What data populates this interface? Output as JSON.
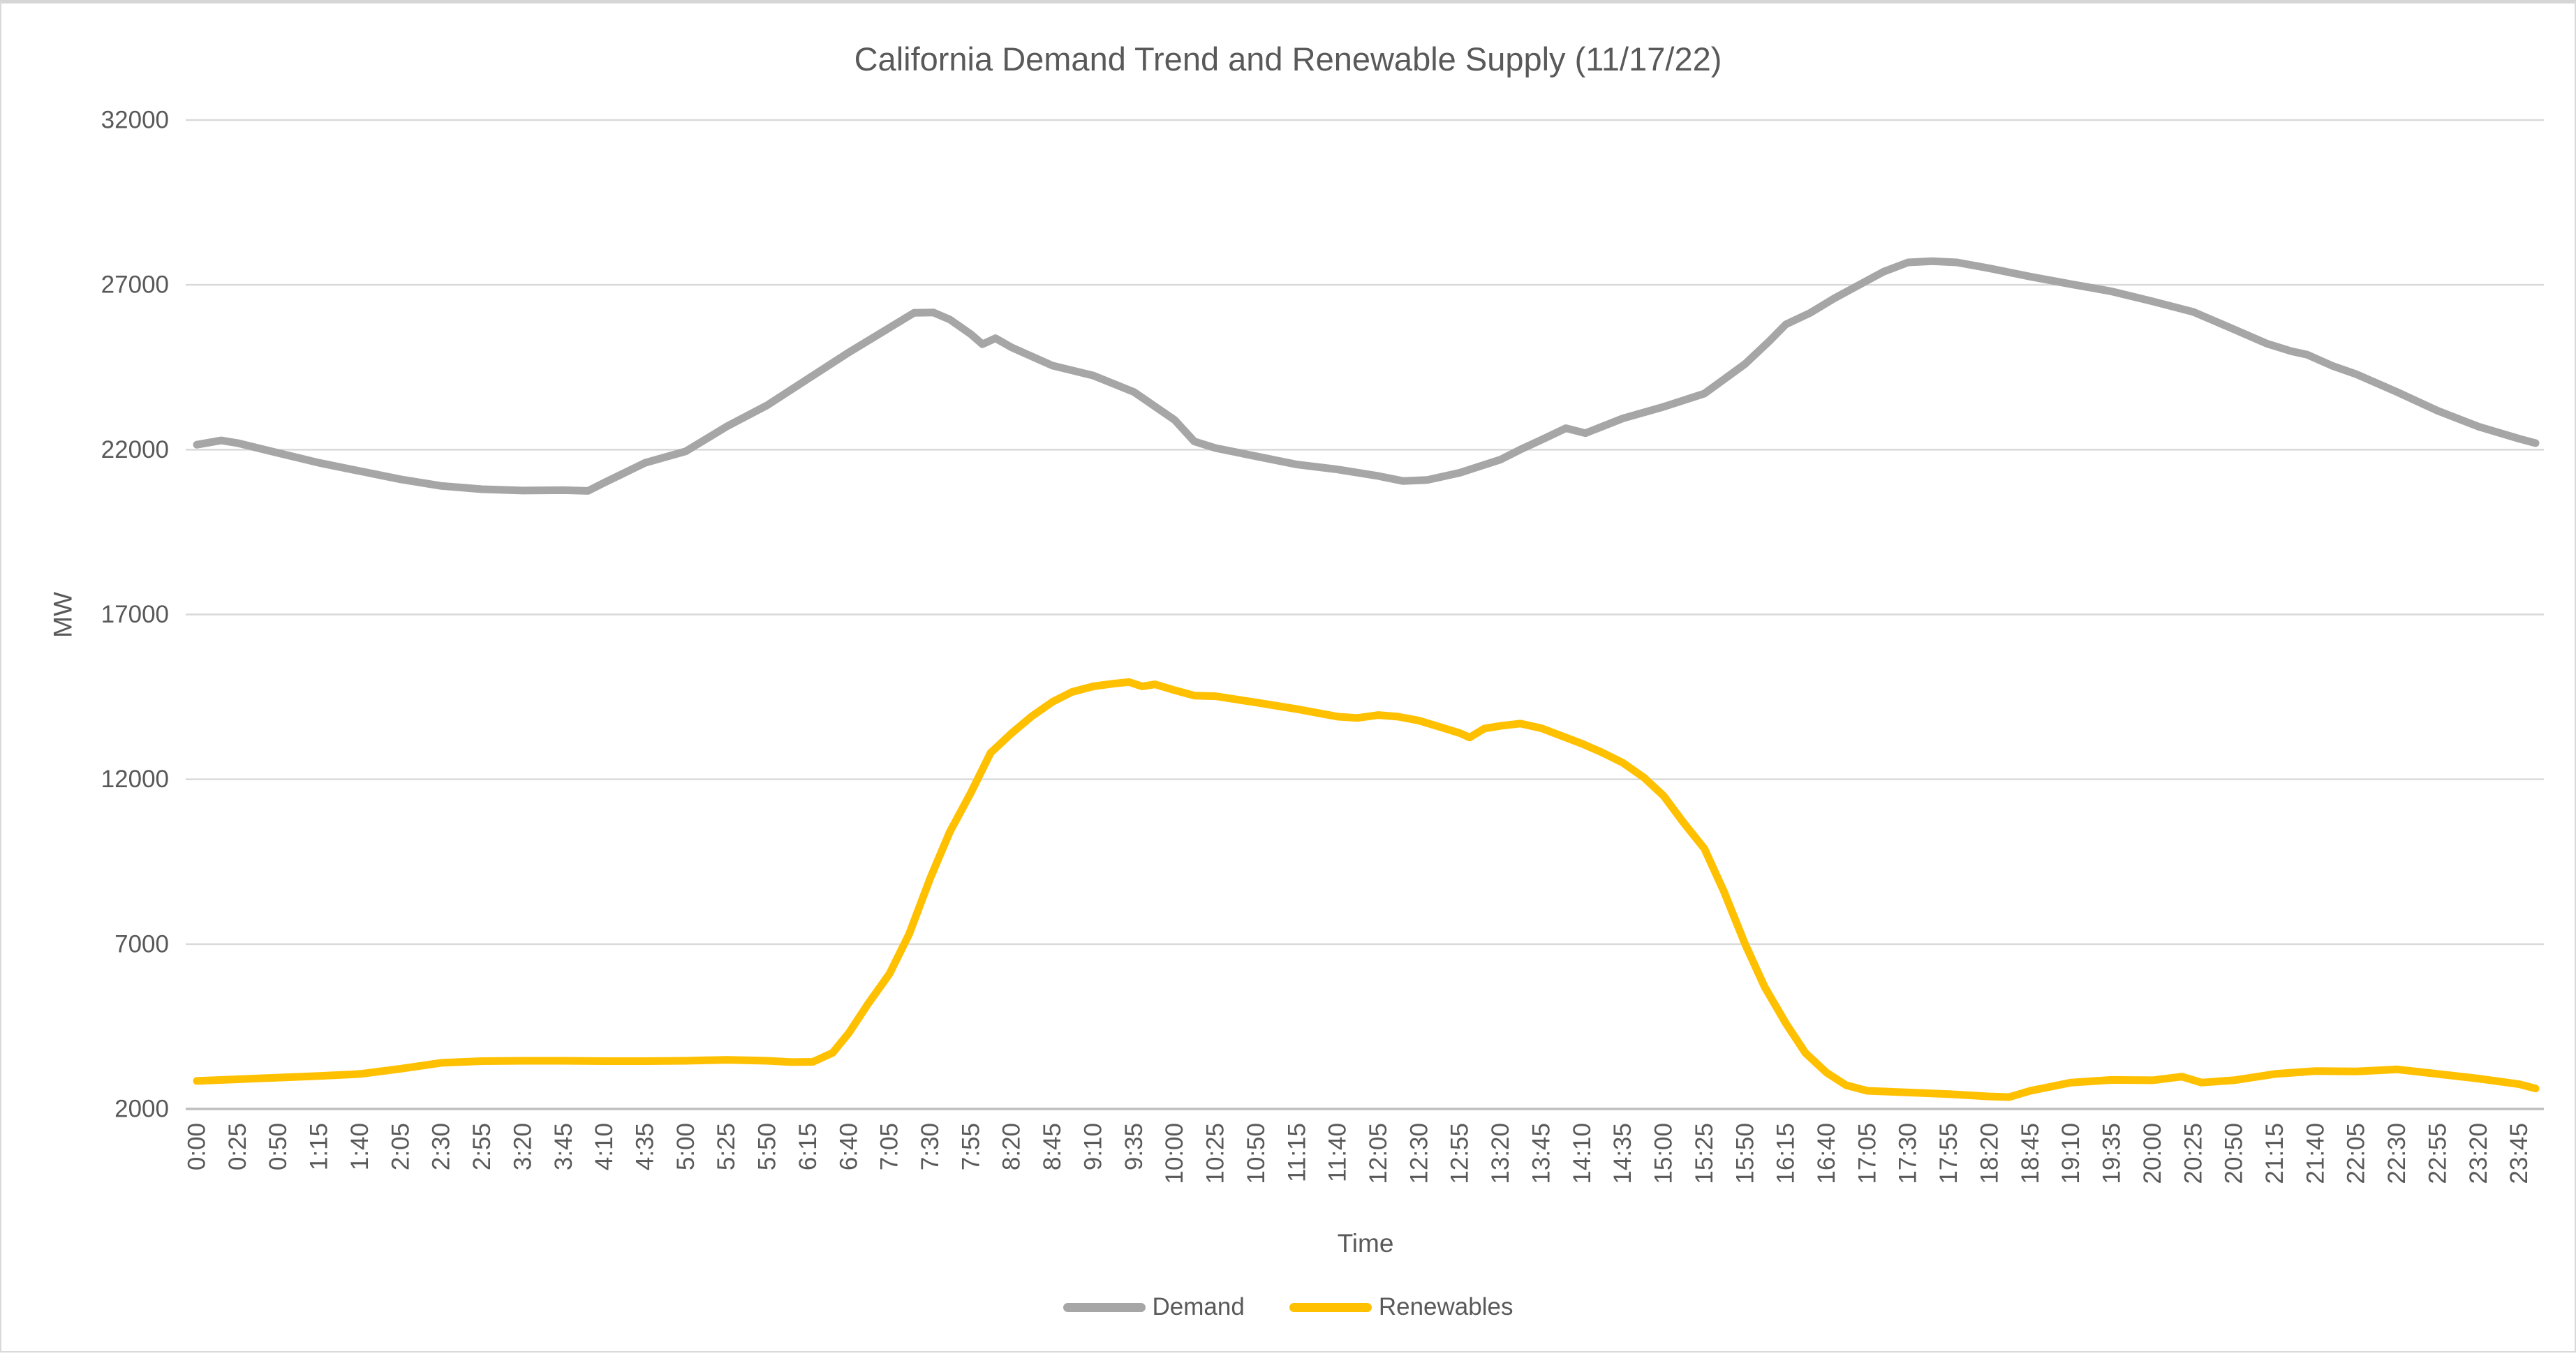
{
  "title": "California Demand Trend and Renewable Supply (11/17/22)",
  "colors": {
    "demand": "#a6a6a6",
    "renewables": "#ffc000",
    "gridline": "#d9d9d9",
    "axis_line": "#bfbfbf",
    "text": "#595959",
    "background": "#ffffff"
  },
  "legend": {
    "items": [
      {
        "label": "Demand",
        "color": "#a6a6a6"
      },
      {
        "label": "Renewables",
        "color": "#ffc000"
      }
    ]
  },
  "chart_data": {
    "type": "line",
    "title": "California Demand Trend and Renewable Supply (11/17/22)",
    "xlabel": "Time",
    "ylabel": "MW",
    "ylim": [
      2000,
      32000
    ],
    "yticks": [
      32000,
      27000,
      22000,
      17000,
      12000,
      7000,
      2000
    ],
    "grid": "horizontal",
    "legend_position": "bottom",
    "x_unit": "minutes_since_midnight",
    "x_range_minutes": [
      0,
      1435
    ],
    "x_tick_interval_minutes": 25,
    "x_tick_labels": [
      "0:00",
      "0:25",
      "0:50",
      "1:15",
      "1:40",
      "2:05",
      "2:30",
      "2:55",
      "3:20",
      "3:45",
      "4:10",
      "4:35",
      "5:00",
      "5:25",
      "5:50",
      "6:15",
      "6:40",
      "7:05",
      "7:30",
      "7:55",
      "8:20",
      "8:45",
      "9:10",
      "9:35",
      "10:00",
      "10:25",
      "10:50",
      "11:15",
      "11:40",
      "12:05",
      "12:30",
      "12:55",
      "13:20",
      "13:45",
      "14:10",
      "14:35",
      "15:00",
      "15:25",
      "15:50",
      "16:15",
      "16:40",
      "17:05",
      "17:30",
      "17:55",
      "18:20",
      "18:45",
      "19:10",
      "19:35",
      "20:00",
      "20:25",
      "20:50",
      "21:15",
      "21:40",
      "22:05",
      "22:30",
      "22:55",
      "23:20",
      "23:45"
    ],
    "series": [
      {
        "name": "Demand",
        "color": "#a6a6a6",
        "points": [
          [
            0,
            22150
          ],
          [
            15,
            22280
          ],
          [
            25,
            22200
          ],
          [
            50,
            21900
          ],
          [
            75,
            21600
          ],
          [
            100,
            21350
          ],
          [
            125,
            21100
          ],
          [
            150,
            20900
          ],
          [
            175,
            20800
          ],
          [
            200,
            20760
          ],
          [
            225,
            20770
          ],
          [
            240,
            20750
          ],
          [
            250,
            21000
          ],
          [
            275,
            21600
          ],
          [
            300,
            21950
          ],
          [
            325,
            22700
          ],
          [
            350,
            23350
          ],
          [
            375,
            24150
          ],
          [
            400,
            24950
          ],
          [
            425,
            25700
          ],
          [
            440,
            26150
          ],
          [
            452,
            26160
          ],
          [
            462,
            25950
          ],
          [
            475,
            25500
          ],
          [
            482,
            25200
          ],
          [
            490,
            25380
          ],
          [
            500,
            25100
          ],
          [
            525,
            24550
          ],
          [
            550,
            24250
          ],
          [
            575,
            23750
          ],
          [
            600,
            22900
          ],
          [
            612,
            22250
          ],
          [
            625,
            22050
          ],
          [
            650,
            21800
          ],
          [
            675,
            21550
          ],
          [
            700,
            21400
          ],
          [
            725,
            21200
          ],
          [
            740,
            21050
          ],
          [
            755,
            21080
          ],
          [
            775,
            21300
          ],
          [
            800,
            21700
          ],
          [
            812,
            22000
          ],
          [
            825,
            22300
          ],
          [
            840,
            22650
          ],
          [
            852,
            22500
          ],
          [
            875,
            22950
          ],
          [
            900,
            23300
          ],
          [
            925,
            23700
          ],
          [
            950,
            24600
          ],
          [
            965,
            25300
          ],
          [
            975,
            25800
          ],
          [
            990,
            26150
          ],
          [
            1005,
            26600
          ],
          [
            1020,
            27000
          ],
          [
            1035,
            27400
          ],
          [
            1050,
            27680
          ],
          [
            1065,
            27720
          ],
          [
            1080,
            27680
          ],
          [
            1100,
            27500
          ],
          [
            1125,
            27250
          ],
          [
            1150,
            27020
          ],
          [
            1175,
            26800
          ],
          [
            1200,
            26500
          ],
          [
            1225,
            26180
          ],
          [
            1250,
            25650
          ],
          [
            1270,
            25220
          ],
          [
            1285,
            24990
          ],
          [
            1295,
            24880
          ],
          [
            1310,
            24550
          ],
          [
            1325,
            24290
          ],
          [
            1350,
            23750
          ],
          [
            1375,
            23180
          ],
          [
            1400,
            22700
          ],
          [
            1425,
            22330
          ],
          [
            1435,
            22200
          ]
        ]
      },
      {
        "name": "Renewables",
        "color": "#ffc000",
        "points": [
          [
            0,
            2850
          ],
          [
            25,
            2900
          ],
          [
            50,
            2950
          ],
          [
            75,
            3000
          ],
          [
            100,
            3060
          ],
          [
            125,
            3220
          ],
          [
            150,
            3400
          ],
          [
            175,
            3450
          ],
          [
            200,
            3460
          ],
          [
            225,
            3460
          ],
          [
            250,
            3450
          ],
          [
            275,
            3450
          ],
          [
            300,
            3460
          ],
          [
            325,
            3490
          ],
          [
            350,
            3460
          ],
          [
            365,
            3420
          ],
          [
            378,
            3430
          ],
          [
            390,
            3700
          ],
          [
            400,
            4300
          ],
          [
            412,
            5200
          ],
          [
            425,
            6100
          ],
          [
            437,
            7300
          ],
          [
            450,
            9000
          ],
          [
            462,
            10400
          ],
          [
            475,
            11600
          ],
          [
            487,
            12800
          ],
          [
            500,
            13400
          ],
          [
            512,
            13900
          ],
          [
            525,
            14350
          ],
          [
            537,
            14650
          ],
          [
            550,
            14820
          ],
          [
            562,
            14900
          ],
          [
            572,
            14950
          ],
          [
            580,
            14820
          ],
          [
            588,
            14880
          ],
          [
            600,
            14700
          ],
          [
            612,
            14540
          ],
          [
            625,
            14520
          ],
          [
            650,
            14330
          ],
          [
            675,
            14130
          ],
          [
            700,
            13900
          ],
          [
            712,
            13860
          ],
          [
            725,
            13950
          ],
          [
            737,
            13900
          ],
          [
            750,
            13780
          ],
          [
            762,
            13600
          ],
          [
            775,
            13400
          ],
          [
            781,
            13270
          ],
          [
            790,
            13540
          ],
          [
            800,
            13620
          ],
          [
            812,
            13690
          ],
          [
            825,
            13550
          ],
          [
            850,
            13080
          ],
          [
            862,
            12820
          ],
          [
            875,
            12500
          ],
          [
            888,
            12050
          ],
          [
            900,
            11500
          ],
          [
            912,
            10700
          ],
          [
            925,
            9900
          ],
          [
            937,
            8600
          ],
          [
            950,
            7000
          ],
          [
            962,
            5700
          ],
          [
            975,
            4600
          ],
          [
            987,
            3700
          ],
          [
            1000,
            3100
          ],
          [
            1012,
            2720
          ],
          [
            1025,
            2550
          ],
          [
            1050,
            2500
          ],
          [
            1075,
            2450
          ],
          [
            1100,
            2380
          ],
          [
            1112,
            2360
          ],
          [
            1125,
            2550
          ],
          [
            1150,
            2800
          ],
          [
            1175,
            2880
          ],
          [
            1200,
            2870
          ],
          [
            1218,
            2980
          ],
          [
            1230,
            2800
          ],
          [
            1250,
            2870
          ],
          [
            1275,
            3060
          ],
          [
            1300,
            3150
          ],
          [
            1325,
            3140
          ],
          [
            1350,
            3200
          ],
          [
            1375,
            3060
          ],
          [
            1400,
            2920
          ],
          [
            1425,
            2750
          ],
          [
            1435,
            2620
          ]
        ]
      }
    ]
  }
}
